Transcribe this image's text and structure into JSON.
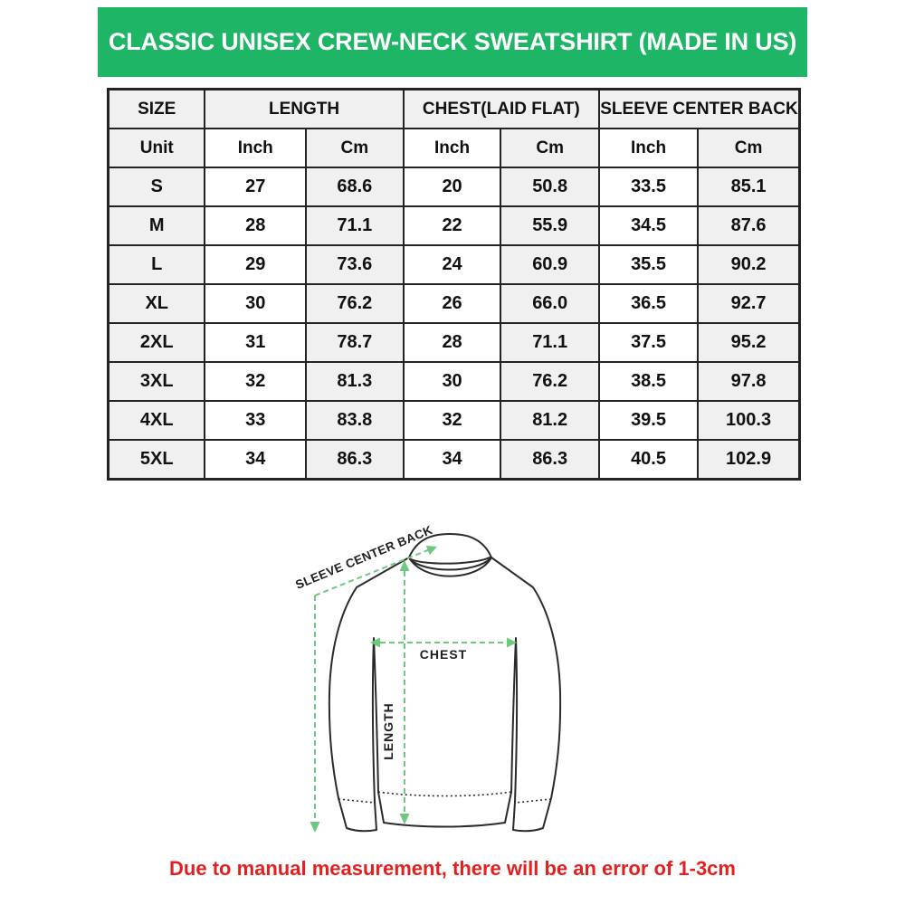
{
  "banner": {
    "title": "CLASSIC UNISEX CREW-NECK SWEATSHIRT (MADE IN US)",
    "background_color": "#1fb566",
    "text_color": "#ffffff"
  },
  "table": {
    "group_headers": [
      {
        "label": "SIZE"
      },
      {
        "label": "LENGTH"
      },
      {
        "label": "CHEST(LAID FLAT)"
      },
      {
        "label": "SLEEVE CENTER BACK"
      }
    ],
    "unit_row": [
      "Unit",
      "Inch",
      "Cm",
      "Inch",
      "Cm",
      "Inch",
      "Cm"
    ],
    "rows": [
      [
        "S",
        "27",
        "68.6",
        "20",
        "50.8",
        "33.5",
        "85.1"
      ],
      [
        "M",
        "28",
        "71.1",
        "22",
        "55.9",
        "34.5",
        "87.6"
      ],
      [
        "L",
        "29",
        "73.6",
        "24",
        "60.9",
        "35.5",
        "90.2"
      ],
      [
        "XL",
        "30",
        "76.2",
        "26",
        "66.0",
        "36.5",
        "92.7"
      ],
      [
        "2XL",
        "31",
        "78.7",
        "28",
        "71.1",
        "37.5",
        "95.2"
      ],
      [
        "3XL",
        "32",
        "81.3",
        "30",
        "76.2",
        "38.5",
        "97.8"
      ],
      [
        "4XL",
        "33",
        "83.8",
        "32",
        "81.2",
        "39.5",
        "100.3"
      ],
      [
        "5XL",
        "34",
        "86.3",
        "34",
        "86.3",
        "40.5",
        "102.9"
      ]
    ],
    "shade_color": "#f0f0f0",
    "border_color": "#232323"
  },
  "diagram": {
    "sleeve_center_back_label": "SLEEVE CENTER BACK",
    "chest_label": "CHEST",
    "length_label": "LENGTH",
    "arrow_color": "#6cc97e",
    "outline_color": "#2b2b2b"
  },
  "footer": {
    "note": "Due to manual measurement, there will be an error of 1-3cm",
    "text_color": "#e22020"
  }
}
